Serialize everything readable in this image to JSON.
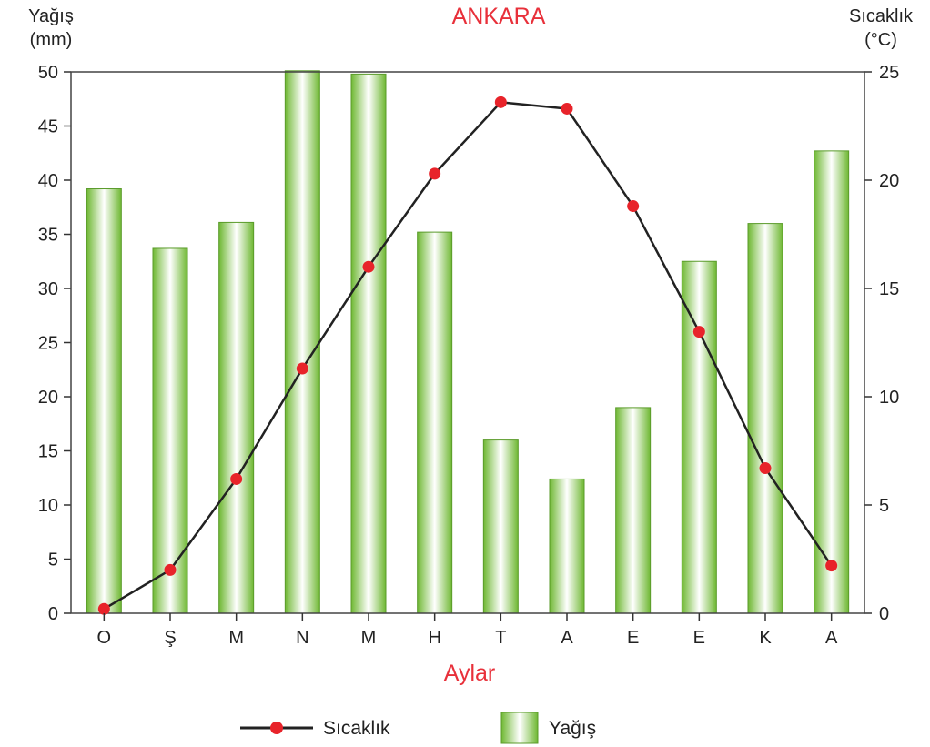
{
  "chart_data": {
    "type": "bar+line",
    "title": "ANKARA",
    "xlabel": "Aylar",
    "categories": [
      "O",
      "Ş",
      "M",
      "N",
      "M",
      "H",
      "T",
      "A",
      "E",
      "E",
      "K",
      "A"
    ],
    "y_left": {
      "label_line1": "Yağış",
      "label_line2": "(mm)",
      "ylim": [
        0,
        50
      ],
      "ticks": [
        0,
        5,
        10,
        15,
        20,
        25,
        30,
        35,
        40,
        45,
        50
      ]
    },
    "y_right": {
      "label_line1": "Sıcaklık",
      "label_line2": "(°C)",
      "ylim": [
        0,
        25
      ],
      "ticks": [
        0,
        5,
        10,
        15,
        20,
        25
      ]
    },
    "series": [
      {
        "name": "Yağış",
        "type": "bar",
        "axis": "left",
        "values": [
          39.2,
          33.7,
          36.1,
          50.1,
          49.8,
          35.2,
          16.0,
          12.4,
          19.0,
          32.5,
          36.0,
          42.7
        ]
      },
      {
        "name": "Sıcaklık",
        "type": "line",
        "axis": "right",
        "values": [
          0.2,
          2.0,
          6.2,
          11.3,
          16.0,
          20.3,
          23.6,
          23.3,
          18.8,
          13.0,
          6.7,
          2.2
        ]
      }
    ],
    "grid": false,
    "legend": "bottom-center",
    "colors": {
      "title": "#e8303a",
      "xlabel": "#e8303a",
      "bar": "#7cc142",
      "bar_highlight": "#ffffff",
      "line": "#222222",
      "marker": "#e8232a"
    }
  }
}
